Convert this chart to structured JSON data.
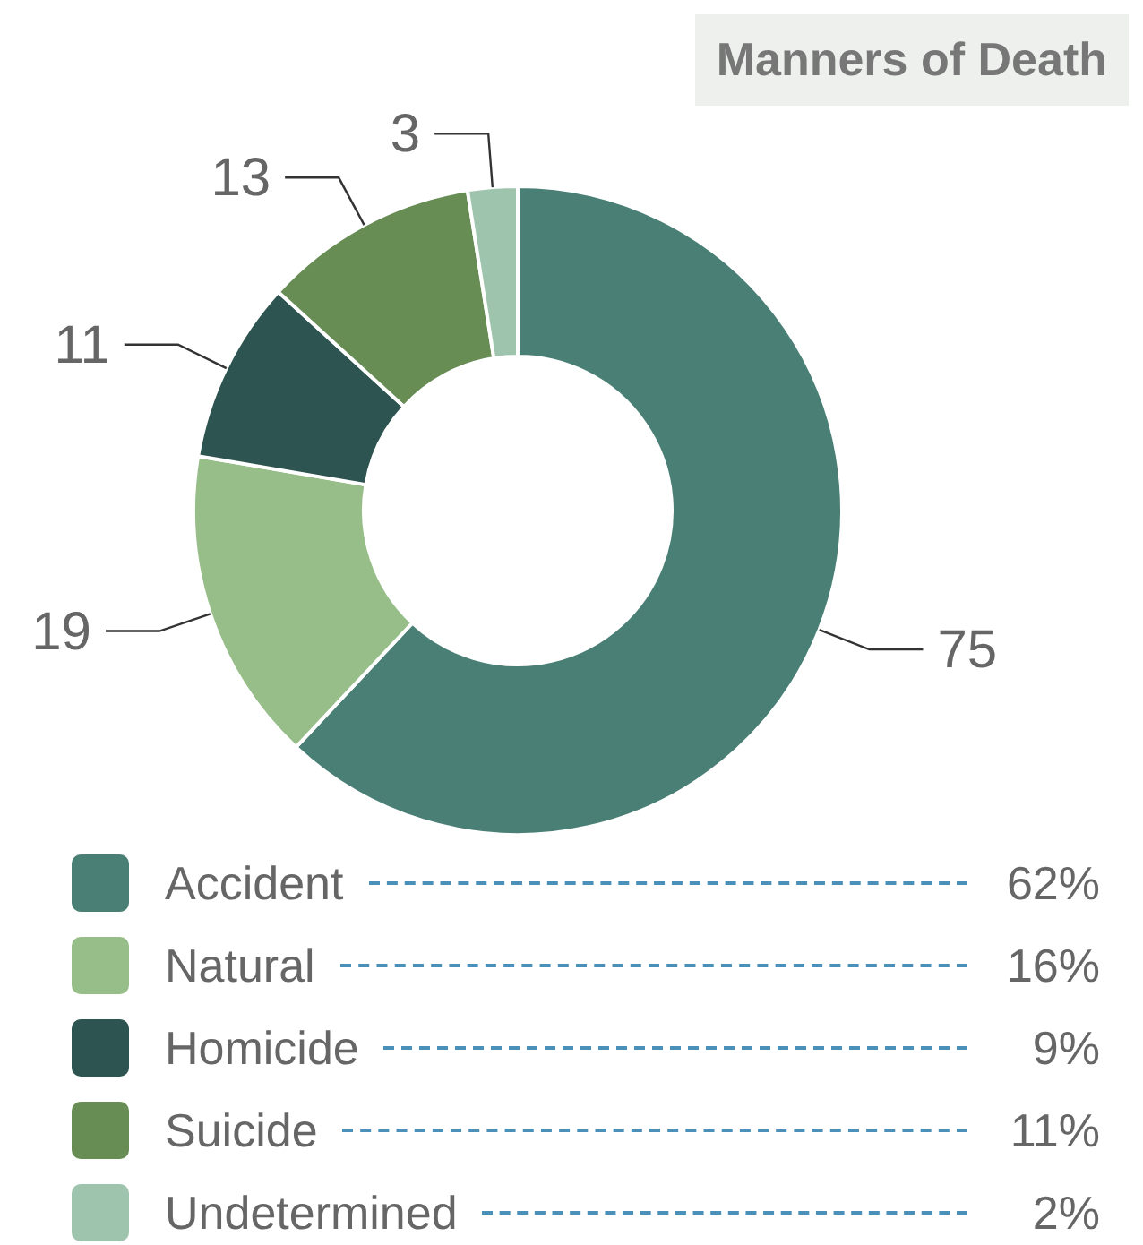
{
  "chart_data": {
    "type": "donut",
    "title": "Manners of Death",
    "categories": [
      "Accident",
      "Natural",
      "Homicide",
      "Suicide",
      "Undetermined"
    ],
    "values": [
      75,
      19,
      11,
      13,
      3
    ],
    "colors": [
      "#4a7f75",
      "#97bd89",
      "#2d5450",
      "#678c54",
      "#9ec4ad"
    ],
    "data_labels": true,
    "legend": "bottom",
    "annotations": [
      "62%",
      "16%",
      "9%",
      "11%",
      "2%"
    ]
  }
}
